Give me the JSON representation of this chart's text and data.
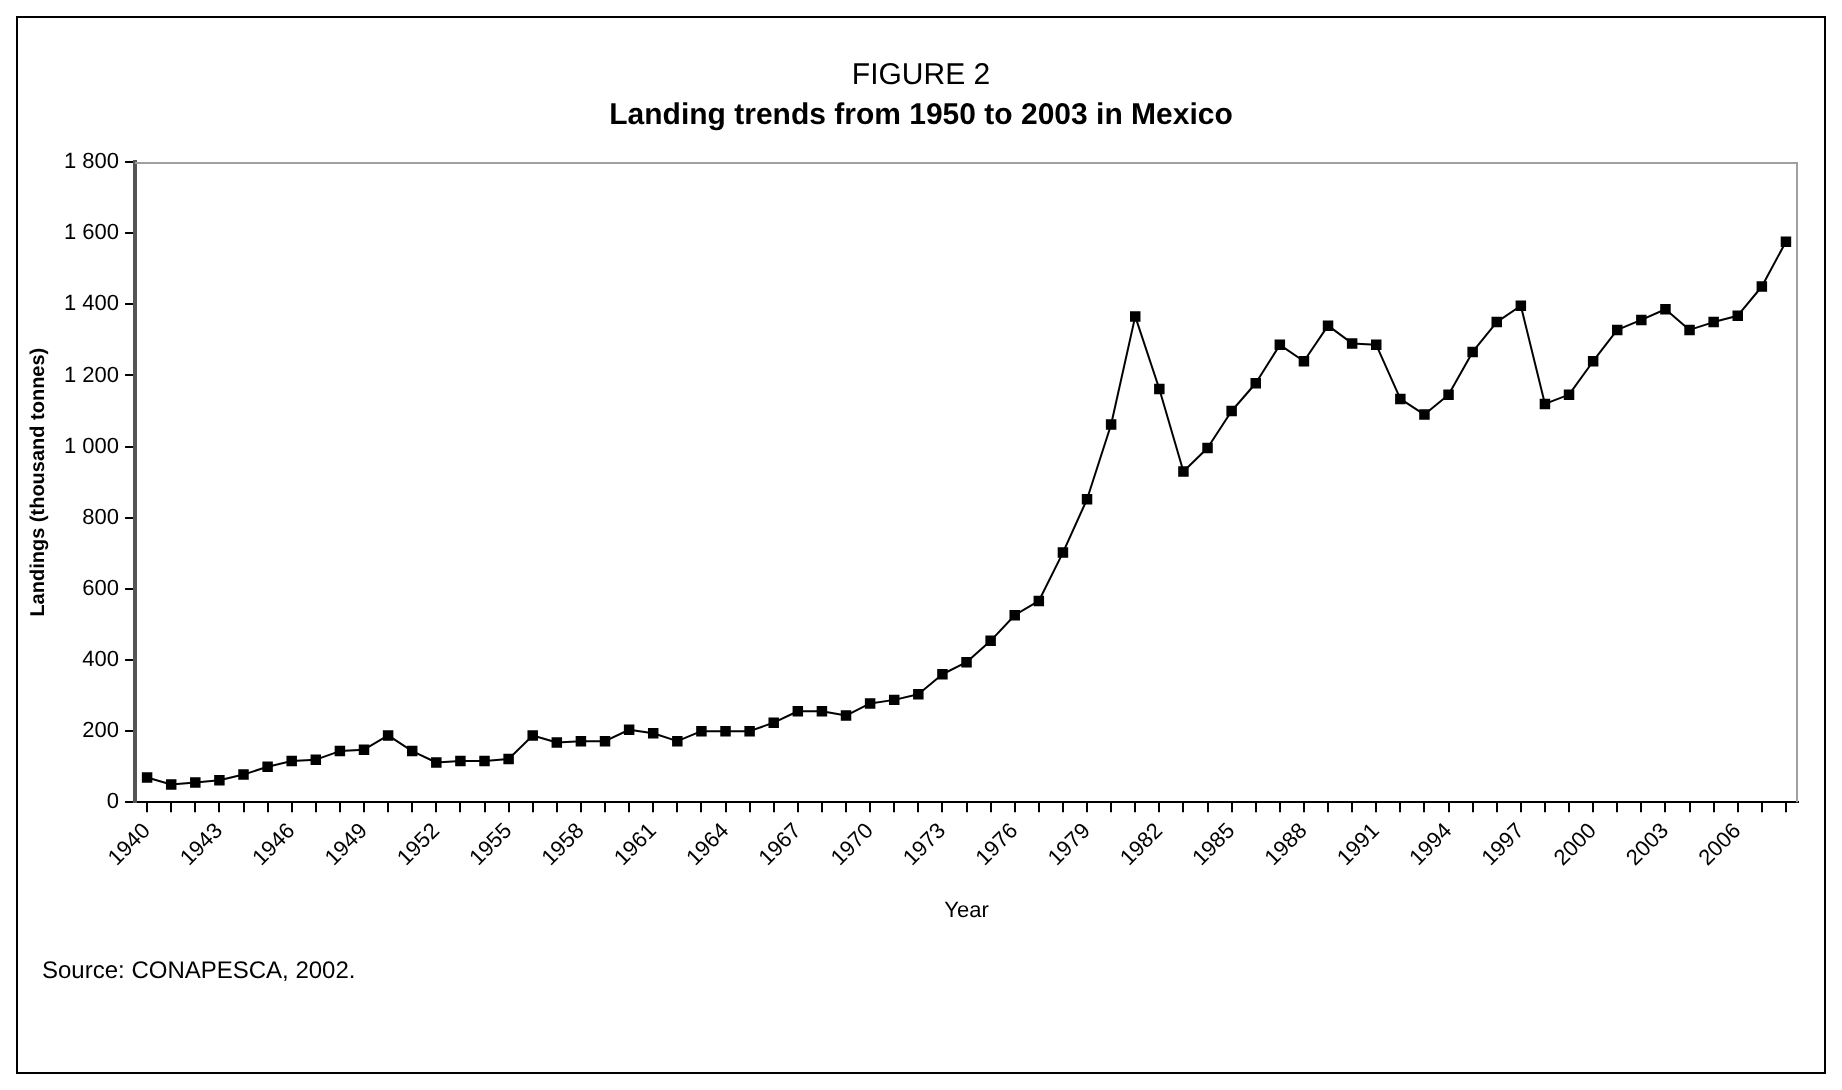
{
  "chart_data": {
    "type": "line",
    "title": "FIGURE 2",
    "subtitle": "Landing trends from 1950 to 2003 in Mexico",
    "xlabel": "Year",
    "ylabel": "Landings (thousand tonnes)",
    "annotations": [
      "Source: CONAPESCA, 2002."
    ],
    "categories": [
      "1940",
      null,
      null,
      "1943",
      null,
      null,
      "1946",
      null,
      null,
      "1949",
      null,
      null,
      "1952",
      null,
      null,
      "1955",
      null,
      null,
      "1958",
      null,
      null,
      "1961",
      null,
      null,
      "1964",
      null,
      null,
      "1967",
      null,
      null,
      "1970",
      null,
      null,
      "1973",
      null,
      null,
      "1976",
      null,
      null,
      "1979",
      null,
      null,
      "1982",
      null,
      null,
      "1985",
      null,
      null,
      "1988",
      null,
      null,
      "1991",
      null,
      null,
      "1994",
      null,
      null,
      "1997",
      null,
      null,
      "2000",
      null,
      null,
      "2003",
      null,
      null,
      "2006",
      null,
      null
    ],
    "series": [
      {
        "color": "#000000",
        "values": [
          70,
          50,
          56,
          62,
          78,
          100,
          116,
          120,
          144,
          148,
          188,
          144,
          112,
          116,
          116,
          122,
          188,
          168,
          172,
          172,
          204,
          194,
          172,
          200,
          200,
          200,
          224,
          256,
          256,
          244,
          278,
          288,
          304,
          360,
          394,
          454,
          526,
          566,
          702,
          852,
          1062,
          1366,
          1162,
          930,
          996,
          1100,
          1178,
          1286,
          1240,
          1340,
          1290,
          1286,
          1134,
          1090,
          1146,
          1266,
          1350,
          1396,
          1120,
          1146,
          1240,
          1328,
          1356,
          1386,
          1328,
          1350,
          1368,
          1450,
          1576
        ]
      }
    ],
    "ylim": [
      0,
      1800
    ],
    "yticks": [
      0,
      200,
      400,
      600,
      800,
      {
        "value": 1000,
        "label": "1 000"
      },
      {
        "value": 1200,
        "label": "1 200"
      },
      {
        "value": 1400,
        "label": "1 400"
      },
      {
        "value": 1600,
        "label": "1 600"
      },
      {
        "value": 1800,
        "label": "1 800"
      }
    ],
    "grid": false,
    "legend": false,
    "marker": "square",
    "line_style": "solid"
  }
}
